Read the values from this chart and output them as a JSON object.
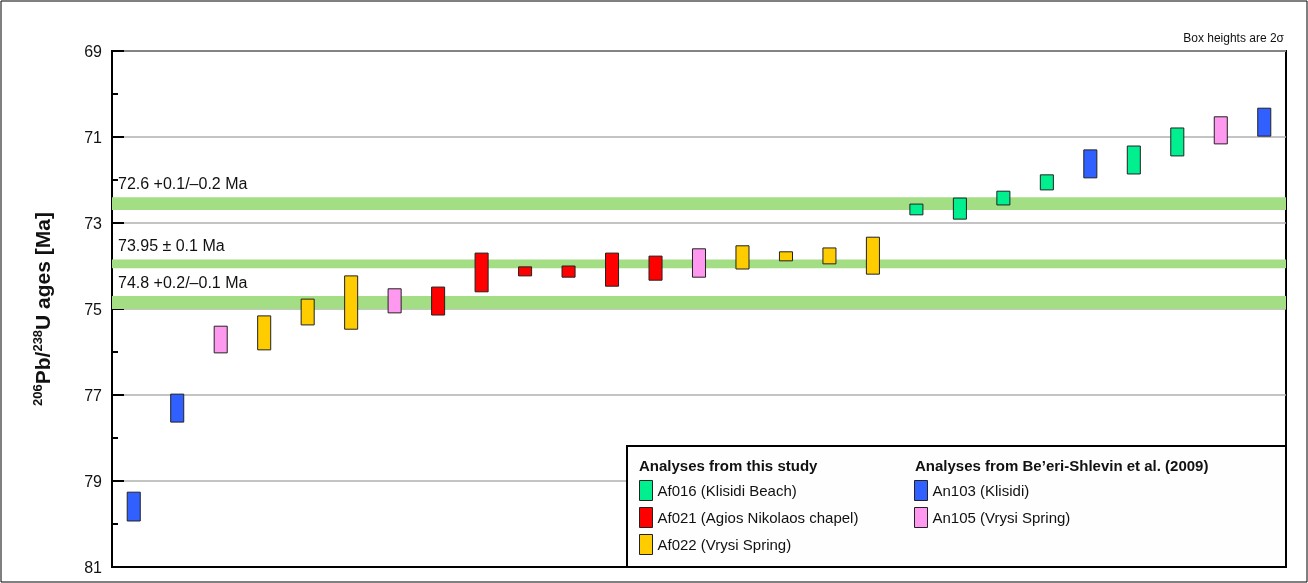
{
  "chart_data": {
    "type": "bar",
    "ylabel": "$^{206}$Pb/$^{238}$U ages [Ma]",
    "legend_title": "Analyses from this study",
    "annotations": [
      "Box heights are 2σ",
      "Analyses from Be’eri-Shlevin et al. (2009)"
    ],
    "categories": [
      null,
      null,
      null,
      null,
      null,
      null,
      null,
      null,
      null,
      null,
      null,
      null,
      null,
      null,
      null,
      null,
      null,
      null,
      null,
      null,
      null,
      null,
      null,
      null,
      null,
      null,
      null
    ],
    "series": [
      {
        "name": "Af016 (Klisidi Beach)",
        "color": "#00f090",
        "base": [
          null,
          null,
          null,
          null,
          null,
          null,
          null,
          null,
          null,
          null,
          null,
          null,
          null,
          null,
          null,
          null,
          null,
          null,
          72.56,
          72.42,
          72.26,
          71.88,
          null,
          71.21,
          70.79,
          null,
          null
        ],
        "values": [
          null,
          null,
          null,
          null,
          null,
          null,
          null,
          null,
          null,
          null,
          null,
          null,
          null,
          null,
          null,
          null,
          null,
          null,
          0.25,
          0.49,
          0.32,
          0.35,
          null,
          0.65,
          0.65,
          null,
          null
        ]
      },
      {
        "name": "Af021 (Agios Nikolaos chapel)",
        "color": "#ff0000",
        "base": [
          null,
          null,
          null,
          null,
          null,
          null,
          null,
          74.49,
          73.7,
          74.02,
          74.0,
          73.7,
          73.77,
          null,
          null,
          null,
          null,
          null,
          null,
          null,
          null,
          null,
          null,
          null,
          null,
          null,
          null
        ],
        "values": [
          null,
          null,
          null,
          null,
          null,
          null,
          null,
          0.65,
          0.9,
          0.21,
          0.26,
          0.77,
          0.56,
          null,
          null,
          null,
          null,
          null,
          null,
          null,
          null,
          null,
          null,
          null,
          null,
          null,
          null
        ]
      },
      {
        "name": "Af022 (Vrysi Spring)",
        "color": "#ffcc00",
        "base": [
          null,
          null,
          null,
          75.16,
          74.77,
          74.23,
          null,
          null,
          null,
          null,
          null,
          null,
          null,
          null,
          73.53,
          73.67,
          73.58,
          73.33,
          null,
          null,
          null,
          null,
          null,
          null,
          null,
          null,
          null
        ],
        "values": [
          null,
          null,
          null,
          0.79,
          0.6,
          1.24,
          null,
          null,
          null,
          null,
          null,
          null,
          null,
          null,
          0.54,
          0.21,
          0.37,
          0.86,
          null,
          null,
          null,
          null,
          null,
          null,
          null,
          null,
          null
        ]
      },
      {
        "name": "An103 (Klisidi)",
        "color": "#3060ff",
        "base": [
          79.26,
          76.98,
          null,
          null,
          null,
          null,
          null,
          null,
          null,
          null,
          null,
          null,
          null,
          null,
          null,
          null,
          null,
          null,
          null,
          null,
          null,
          null,
          71.3,
          null,
          null,
          null,
          70.33
        ],
        "values": [
          0.67,
          0.65,
          null,
          null,
          null,
          null,
          null,
          null,
          null,
          null,
          null,
          null,
          null,
          null,
          null,
          null,
          null,
          null,
          null,
          null,
          null,
          null,
          0.65,
          null,
          null,
          null,
          0.65
        ]
      },
      {
        "name": "An105 (Vrysi Spring)",
        "color": "#ff99f0",
        "base": [
          null,
          null,
          75.4,
          null,
          null,
          null,
          74.53,
          null,
          null,
          null,
          null,
          null,
          null,
          73.6,
          null,
          null,
          null,
          null,
          null,
          null,
          null,
          null,
          null,
          null,
          null,
          70.53,
          null
        ],
        "values": [
          null,
          null,
          0.62,
          null,
          null,
          null,
          0.56,
          null,
          null,
          null,
          null,
          null,
          null,
          0.66,
          null,
          null,
          null,
          null,
          null,
          null,
          null,
          null,
          null,
          null,
          null,
          0.63,
          null
        ]
      }
    ],
    "ylim": [
      81,
      69
    ],
    "yticks": [
      69,
      {
        "value": 70,
        "label": null
      },
      71,
      {
        "value": 72,
        "label": null
      },
      73,
      {
        "value": 74,
        "label": null
      },
      75,
      {
        "value": 76,
        "label": null
      },
      77,
      {
        "value": 78,
        "label": null
      },
      79,
      {
        "value": 80,
        "label": null
      },
      81
    ],
    "bands": [
      {
        "axis": "y",
        "from": 72.4,
        "to": 72.7,
        "label": "72.6 +0.1/–0.2 Ma",
        "color": "#a3de85"
      },
      {
        "axis": "y",
        "from": 73.85,
        "to": 74.05,
        "label": "73.95 ± 0.1 Ma",
        "color": "#a3de85"
      },
      {
        "axis": "y",
        "from": 74.7,
        "to": 75.0,
        "label": "74.8 +0.2/–0.1 Ma",
        "color": "#a3de85"
      }
    ],
    "grid": "y",
    "legend": "bottom right"
  }
}
